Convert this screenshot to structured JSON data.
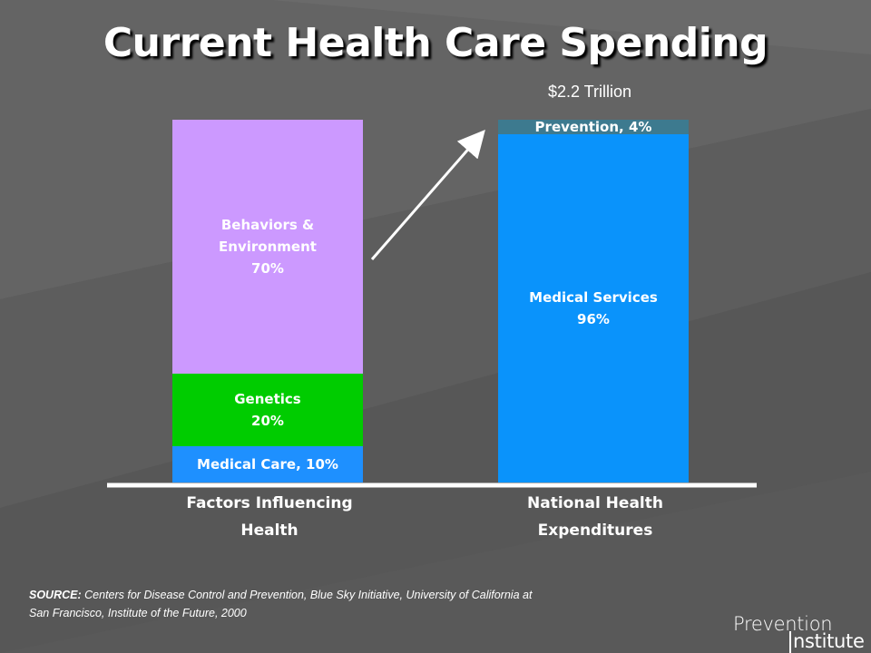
{
  "title": "Current Health Care Spending",
  "subtitle": "$2.2 Trillion",
  "source": {
    "label": "SOURCE:",
    "text": "Centers for Disease Control and Prevention, Blue Sky Initiative, University of California at San Francisco, Institute of the Future, 2000"
  },
  "logo": {
    "line1": "Prevention",
    "line2": "nstitute"
  },
  "colors": {
    "background": "#5a5a5a",
    "medical_care": "#1e90ff",
    "genetics": "#00cc00",
    "behaviors": "#cc99ff",
    "medical_services": "#0a93fb",
    "prevention": "#3d7a8f",
    "axis": "#ffffff"
  },
  "chart_data": {
    "type": "bar",
    "stacked": true,
    "ylim": [
      0,
      100
    ],
    "categories": [
      {
        "lines": [
          "Factors Influencing",
          "Health"
        ]
      },
      {
        "lines": [
          "National Health",
          "Expenditures"
        ]
      }
    ],
    "bars": [
      {
        "segments": [
          {
            "key": "medical_care",
            "value": 10,
            "label_lines": [
              "Medical Care, 10%"
            ],
            "color": "#1e90ff"
          },
          {
            "key": "genetics",
            "value": 20,
            "label_lines": [
              "Genetics",
              "20%"
            ],
            "color": "#00cc00"
          },
          {
            "key": "behaviors",
            "value": 70,
            "label_lines": [
              "Behaviors &",
              "Environment",
              "70%"
            ],
            "color": "#cc99ff"
          }
        ]
      },
      {
        "segments": [
          {
            "key": "medical_services",
            "value": 96,
            "label_lines": [
              "Medical Services",
              "96%"
            ],
            "color": "#0a93fb"
          },
          {
            "key": "prevention",
            "value": 4,
            "label_lines": [
              "Prevention, 4%"
            ],
            "color": "#3d7a8f"
          }
        ]
      }
    ],
    "annotation": {
      "type": "arrow",
      "from": "behaviors",
      "to": "prevention"
    }
  }
}
